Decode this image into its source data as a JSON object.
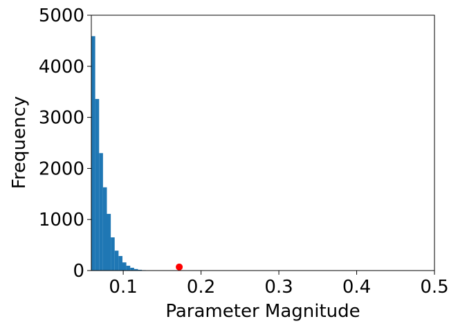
{
  "chart_data": {
    "type": "histogram",
    "xlabel": "Parameter Magnitude",
    "ylabel": "Frequency",
    "bins": [
      0.059,
      0.064,
      0.069,
      0.074,
      0.079,
      0.084,
      0.089,
      0.094,
      0.099,
      0.104,
      0.109,
      0.114,
      0.119,
      0.124,
      0.129,
      0.134
    ],
    "values": [
      4590,
      3360,
      2300,
      1630,
      1110,
      650,
      390,
      285,
      160,
      95,
      55,
      30,
      15,
      8,
      3
    ],
    "color": "#1f77b4",
    "markers": {
      "type": "scatter",
      "x": [
        0.172
      ],
      "values": [
        70
      ],
      "color": "#ff0000"
    },
    "xlim": [
      0.059,
      0.5
    ],
    "xticks": [
      0.1,
      0.2,
      0.3,
      0.4,
      0.5
    ],
    "ylim": [
      0,
      5000
    ],
    "yticks": [
      0,
      1000,
      2000,
      3000,
      4000,
      5000
    ],
    "grid": false
  }
}
